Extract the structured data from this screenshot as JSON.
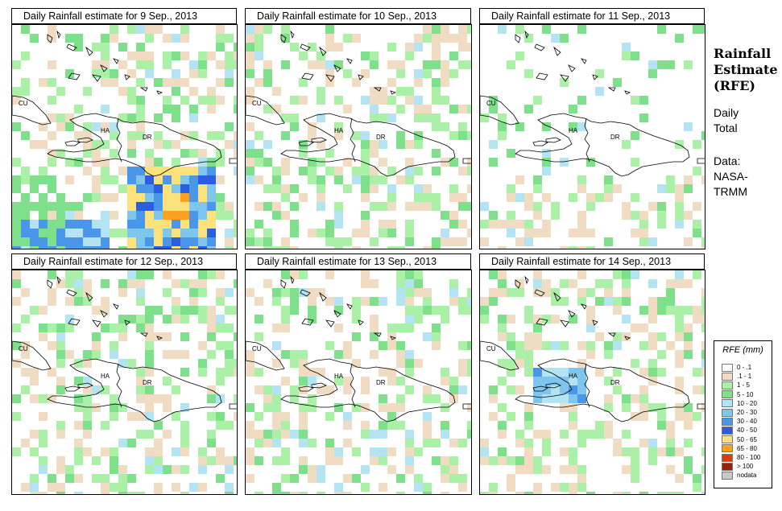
{
  "panels": [
    {
      "title": "Daily Rainfall estimate for  9 Sep., 2013"
    },
    {
      "title": "Daily Rainfall estimate for  10 Sep., 2013"
    },
    {
      "title": "Daily Rainfall estimate for  11 Sep., 2013"
    },
    {
      "title": "Daily Rainfall estimate for  12 Sep., 2013"
    },
    {
      "title": "Daily Rainfall estimate for  13 Sep., 2013"
    },
    {
      "title": "Daily Rainfall estimate for  14 Sep., 2013"
    }
  ],
  "map_labels": {
    "cu": "CU",
    "ha": "HA",
    "dr": "DR"
  },
  "side": {
    "title_line1": "Rainfall",
    "title_line2": "Estimate",
    "title_line3": "(RFE)",
    "daily": "Daily",
    "total": "Total",
    "data": "Data:",
    "nasa": "NASA-",
    "trmm": "TRMM"
  },
  "legend": {
    "title": "RFE (mm)",
    "items": [
      {
        "label": "0 - .1",
        "color": "#ffffff"
      },
      {
        "label": ".1 - 1",
        "color": "#efdcc2"
      },
      {
        "label": "1 - 5",
        "color": "#aaf0a6"
      },
      {
        "label": "5 - 10",
        "color": "#7ee08a"
      },
      {
        "label": "10 - 20",
        "color": "#b4e4f4"
      },
      {
        "label": "20 - 30",
        "color": "#7ec6ee"
      },
      {
        "label": "30 - 40",
        "color": "#4a96e8"
      },
      {
        "label": "40 - 50",
        "color": "#2a5ee0"
      },
      {
        "label": "50 - 65",
        "color": "#fce27a"
      },
      {
        "label": "65 - 80",
        "color": "#fca020"
      },
      {
        "label": "80 - 100",
        "color": "#e03a10"
      },
      {
        "label": "> 100",
        "color": "#9a1e0e"
      },
      {
        "label": "nodata",
        "color": "#c8c8c8"
      }
    ]
  }
}
